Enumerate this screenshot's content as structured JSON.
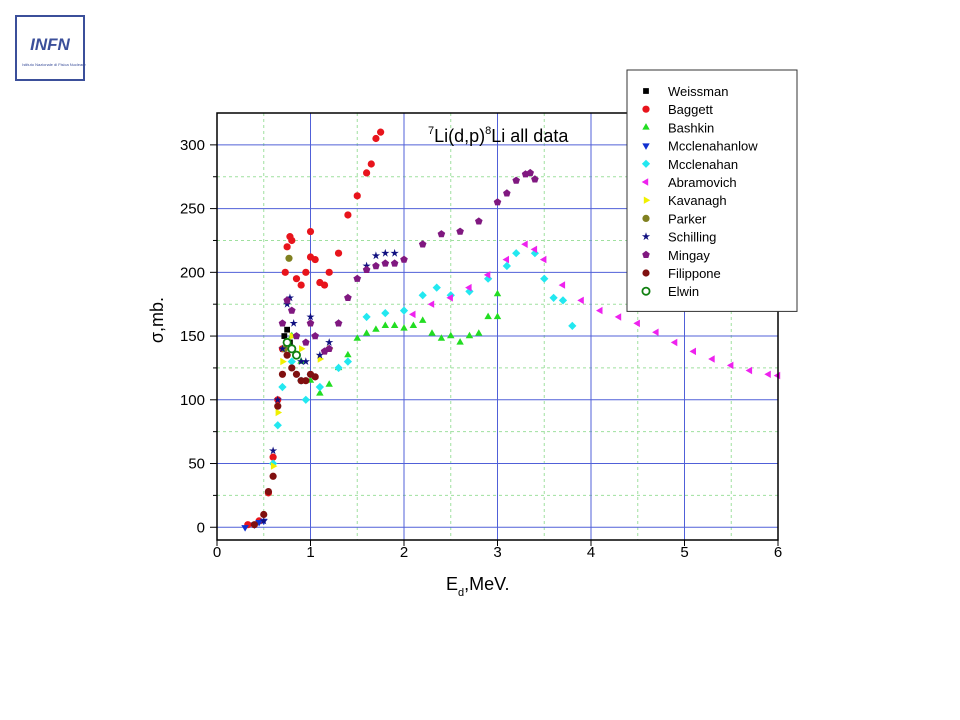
{
  "logo": {
    "text": "INFN",
    "subtitle": "Istituto Nazionale di Fisica Nucleare"
  },
  "chart_data": {
    "type": "scatter",
    "title": [
      "7",
      "Li(d,p)",
      "8",
      "Li all data"
    ],
    "xlabel": [
      "E",
      "d",
      ",MeV."
    ],
    "ylabel": "σ,mb.",
    "xlim": [
      0,
      6
    ],
    "ylim": [
      -10,
      325
    ],
    "xticks": [
      0,
      1,
      2,
      3,
      4,
      5,
      6
    ],
    "yticks": [
      0,
      50,
      100,
      150,
      200,
      250,
      300
    ],
    "minor_xticks": [
      0.5,
      1.5,
      2.5,
      3.5,
      4.5,
      5.5
    ],
    "minor_yticks": [
      25,
      75,
      125,
      175,
      225,
      275
    ],
    "grid": true,
    "legend": "upper right",
    "series": [
      {
        "name": "Weissman",
        "color": "#000000",
        "marker": "square",
        "x": [
          0.72,
          0.75,
          0.78
        ],
        "values": [
          150,
          155,
          145
        ]
      },
      {
        "name": "Baggett",
        "color": "#e8141c",
        "marker": "circle",
        "x": [
          0.33,
          0.45,
          0.55,
          0.6,
          0.65,
          0.7,
          0.73,
          0.75,
          0.78,
          0.8,
          0.85,
          0.9,
          0.95,
          1.0,
          1.0,
          1.05,
          1.1,
          1.15,
          1.2,
          1.3,
          1.4,
          1.5,
          1.6,
          1.65,
          1.7,
          1.75
        ],
        "values": [
          2,
          5,
          27,
          55,
          100,
          140,
          200,
          220,
          228,
          225,
          195,
          190,
          200,
          232,
          212,
          210,
          192,
          190,
          200,
          215,
          245,
          260,
          278,
          285,
          305,
          310
        ]
      },
      {
        "name": "Bashkin",
        "color": "#22dd22",
        "marker": "triangle-up",
        "x": [
          0.8,
          0.9,
          1.0,
          1.1,
          1.2,
          1.3,
          1.4,
          1.5,
          1.6,
          1.7,
          1.8,
          1.9,
          2.0,
          2.1,
          2.2,
          2.3,
          2.4,
          2.5,
          2.6,
          2.7,
          2.8,
          2.9,
          3.0,
          3.0
        ],
        "values": [
          150,
          130,
          115,
          105,
          112,
          125,
          135,
          148,
          152,
          155,
          158,
          158,
          156,
          158,
          162,
          152,
          148,
          150,
          145,
          150,
          152,
          165,
          183,
          165
        ]
      },
      {
        "name": "Mcclenahanlow",
        "color": "#1030d0",
        "marker": "triangle-down",
        "x": [
          0.3,
          0.4,
          0.45,
          0.5
        ],
        "values": [
          0,
          2,
          4,
          5
        ]
      },
      {
        "name": "Mcclenahan",
        "color": "#22e8f0",
        "marker": "diamond",
        "x": [
          0.6,
          0.65,
          0.7,
          0.8,
          0.9,
          0.95,
          1.0,
          1.1,
          1.3,
          1.4,
          1.6,
          1.8,
          2.0,
          2.2,
          2.35,
          2.5,
          2.7,
          2.9,
          3.1,
          3.2,
          3.4,
          3.5,
          3.6,
          3.7,
          3.8
        ],
        "values": [
          50,
          80,
          110,
          130,
          115,
          100,
          120,
          110,
          125,
          130,
          165,
          168,
          170,
          182,
          188,
          182,
          185,
          195,
          205,
          215,
          215,
          195,
          180,
          178,
          158
        ]
      },
      {
        "name": "Abramovich",
        "color": "#ee22ee",
        "marker": "triangle-left",
        "x": [
          2.1,
          2.3,
          2.5,
          2.7,
          2.9,
          3.1,
          3.3,
          3.4,
          3.5,
          3.7,
          3.9,
          4.1,
          4.3,
          4.5,
          4.7,
          4.9,
          5.1,
          5.3,
          5.5,
          5.7,
          5.9,
          6.0
        ],
        "values": [
          167,
          175,
          180,
          188,
          198,
          210,
          222,
          218,
          210,
          190,
          178,
          170,
          165,
          160,
          153,
          145,
          138,
          132,
          127,
          123,
          120,
          119
        ]
      },
      {
        "name": "Kavanagh",
        "color": "#f0f000",
        "marker": "triangle-right",
        "x": [
          0.6,
          0.65,
          0.7,
          0.8,
          0.9,
          1.1,
          1.2
        ],
        "values": [
          48,
          90,
          130,
          150,
          140,
          132,
          140
        ]
      },
      {
        "name": "Parker",
        "color": "#808020",
        "marker": "circle",
        "x": [
          0.72,
          0.77
        ],
        "values": [
          140,
          211
        ]
      },
      {
        "name": "Schilling",
        "color": "#101080",
        "marker": "star",
        "x": [
          0.5,
          0.6,
          0.65,
          0.7,
          0.75,
          0.78,
          0.82,
          0.9,
          0.95,
          1.0,
          1.05,
          1.1,
          1.2,
          1.3,
          1.4,
          1.5,
          1.6,
          1.7,
          1.8,
          1.9
        ],
        "values": [
          5,
          60,
          100,
          140,
          175,
          180,
          160,
          130,
          130,
          165,
          150,
          135,
          145,
          160,
          180,
          195,
          205,
          213,
          215,
          215
        ]
      },
      {
        "name": "Mingay",
        "color": "#801880",
        "marker": "pentagon",
        "x": [
          0.7,
          0.75,
          0.8,
          0.85,
          0.95,
          1.0,
          1.05,
          1.15,
          1.2,
          1.3,
          1.4,
          1.5,
          1.6,
          1.7,
          1.8,
          1.9,
          2.0,
          2.2,
          2.4,
          2.6,
          2.8,
          3.0,
          3.1,
          3.2,
          3.3,
          3.35,
          3.4
        ],
        "values": [
          160,
          178,
          170,
          150,
          145,
          160,
          150,
          138,
          140,
          160,
          180,
          195,
          202,
          205,
          207,
          207,
          210,
          222,
          230,
          232,
          240,
          255,
          262,
          272,
          277,
          278,
          273
        ]
      },
      {
        "name": "Filippone",
        "color": "#801010",
        "marker": "circle",
        "x": [
          0.4,
          0.5,
          0.55,
          0.6,
          0.65,
          0.7,
          0.75,
          0.8,
          0.85,
          0.9,
          0.95,
          1.0,
          1.05
        ],
        "values": [
          2,
          10,
          28,
          40,
          95,
          120,
          135,
          125,
          120,
          115,
          115,
          120,
          118
        ]
      },
      {
        "name": "Elwin",
        "color": "#108010",
        "marker": "half-circle",
        "x": [
          0.75,
          0.8,
          0.85
        ],
        "values": [
          145,
          140,
          135
        ]
      }
    ]
  }
}
